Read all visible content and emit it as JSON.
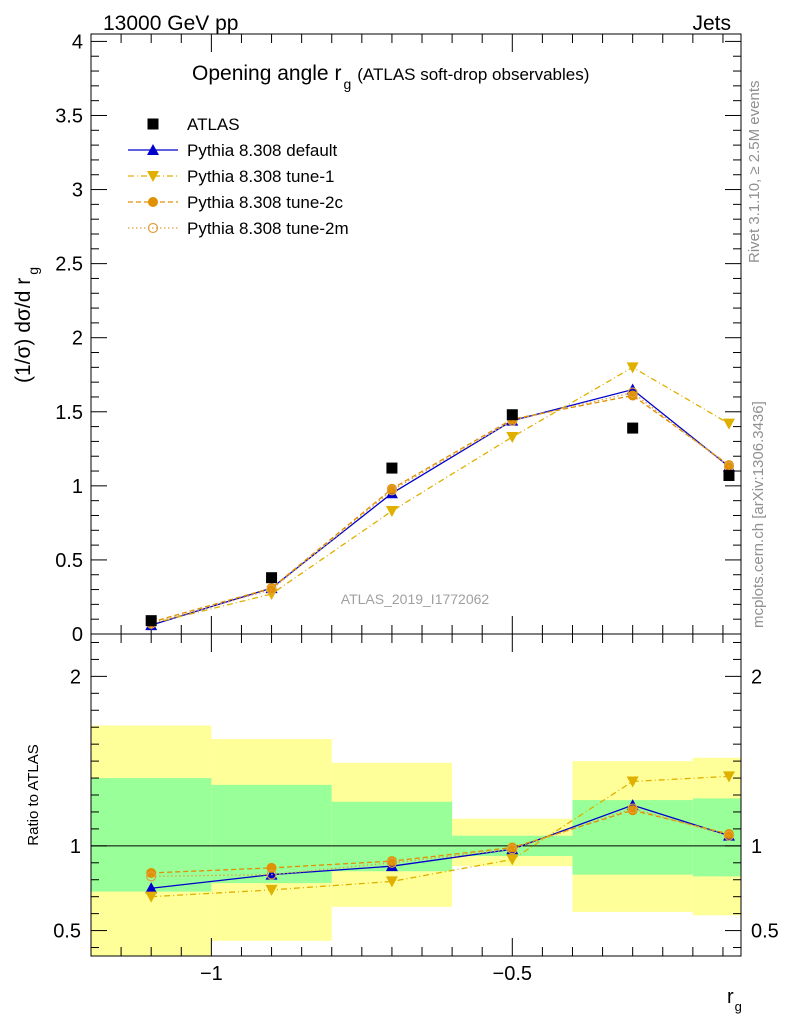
{
  "header": {
    "left": "13000 GeV pp",
    "right": "Jets"
  },
  "side_labels": {
    "rivet": "Rivet 3.1.10, ≥ 2.5M events",
    "mcplots": "mcplots.cern.ch [arXiv:1306.3436]"
  },
  "chart_data": [
    {
      "type": "line",
      "title": "Opening angle r",
      "title_sub": "g",
      "title_suffix": "(ATLAS soft-drop observables)",
      "ylabel": "(1/σ) dσ/d r",
      "ylabel_sub": "g",
      "analysis_id": "ATLAS_2019_I1772062",
      "xlim": [
        -1.2,
        -0.12
      ],
      "ylim": [
        0,
        4.05
      ],
      "yticks": [
        "0",
        "0.5",
        "1",
        "1.5",
        "2",
        "2.5",
        "3",
        "3.5",
        "4"
      ],
      "x": [
        -1.1,
        -0.9,
        -0.7,
        -0.5,
        -0.3,
        -0.14
      ],
      "series": [
        {
          "name": "ATLAS",
          "color": "#000000",
          "marker": "square",
          "values": [
            0.09,
            0.38,
            1.12,
            1.48,
            1.39,
            1.07
          ]
        },
        {
          "name": "Pythia 8.308 default",
          "color": "#0000cc",
          "marker": "triangle-up",
          "line": "solid",
          "values": [
            0.06,
            0.31,
            0.95,
            1.44,
            1.65,
            1.13
          ]
        },
        {
          "name": "Pythia 8.308 tune-1",
          "color": "#e0b000",
          "marker": "triangle-down",
          "line": "dashdot",
          "values": [
            0.07,
            0.27,
            0.83,
            1.33,
            1.8,
            1.42
          ]
        },
        {
          "name": "Pythia 8.308 tune-2c",
          "color": "#e09000",
          "marker": "circle",
          "line": "dashed",
          "values": [
            0.08,
            0.31,
            0.98,
            1.45,
            1.61,
            1.14
          ]
        },
        {
          "name": "Pythia 8.308 tune-2m",
          "color": "#e0a040",
          "marker": "open-circle",
          "line": "dotted",
          "values": [
            0.07,
            0.3,
            0.97,
            1.44,
            1.63,
            1.13
          ]
        }
      ]
    },
    {
      "type": "line",
      "ylabel": "Ratio to ATLAS",
      "xlabel": "r",
      "xlabel_sub": "g",
      "xlim": [
        -1.2,
        -0.12
      ],
      "ylim": [
        0.35,
        2.25
      ],
      "xticks": [
        {
          "value": -1.0,
          "label": "−1"
        },
        {
          "value": -0.5,
          "label": "−0.5"
        }
      ],
      "yticks": [
        {
          "value": 0.5,
          "label": "0.5"
        },
        {
          "value": 1.0,
          "label": "1"
        },
        {
          "value": 2.0,
          "label": "2"
        }
      ],
      "bands": [
        {
          "x0": -1.2,
          "x1": -1.0,
          "inner": [
            0.73,
            1.4
          ],
          "outer": [
            0.35,
            1.71
          ]
        },
        {
          "x0": -1.0,
          "x1": -0.8,
          "inner": [
            0.78,
            1.36
          ],
          "outer": [
            0.44,
            1.63
          ]
        },
        {
          "x0": -0.8,
          "x1": -0.6,
          "inner": [
            0.85,
            1.26
          ],
          "outer": [
            0.64,
            1.49
          ]
        },
        {
          "x0": -0.6,
          "x1": -0.4,
          "inner": [
            0.94,
            1.06
          ],
          "outer": [
            0.88,
            1.16
          ]
        },
        {
          "x0": -0.4,
          "x1": -0.2,
          "inner": [
            0.83,
            1.27
          ],
          "outer": [
            0.61,
            1.5
          ]
        },
        {
          "x0": -0.2,
          "x1": -0.12,
          "inner": [
            0.82,
            1.28
          ],
          "outer": [
            0.59,
            1.52
          ]
        }
      ],
      "series": [
        {
          "name": "Pythia 8.308 default",
          "color": "#0000cc",
          "marker": "triangle-up",
          "line": "solid",
          "values": [
            0.75,
            0.83,
            0.88,
            0.98,
            1.24,
            1.06
          ]
        },
        {
          "name": "Pythia 8.308 tune-1",
          "color": "#e0b000",
          "marker": "triangle-down",
          "line": "dashdot",
          "values": [
            0.7,
            0.74,
            0.79,
            0.92,
            1.38,
            1.41
          ]
        },
        {
          "name": "Pythia 8.308 tune-2c",
          "color": "#e09000",
          "marker": "circle",
          "line": "dashed",
          "values": [
            0.84,
            0.87,
            0.91,
            0.99,
            1.21,
            1.07
          ]
        },
        {
          "name": "Pythia 8.308 tune-2m",
          "color": "#e0a040",
          "marker": "open-circle",
          "line": "dotted",
          "values": [
            0.82,
            0.83,
            0.9,
            0.98,
            1.22,
            1.06
          ]
        }
      ]
    }
  ]
}
